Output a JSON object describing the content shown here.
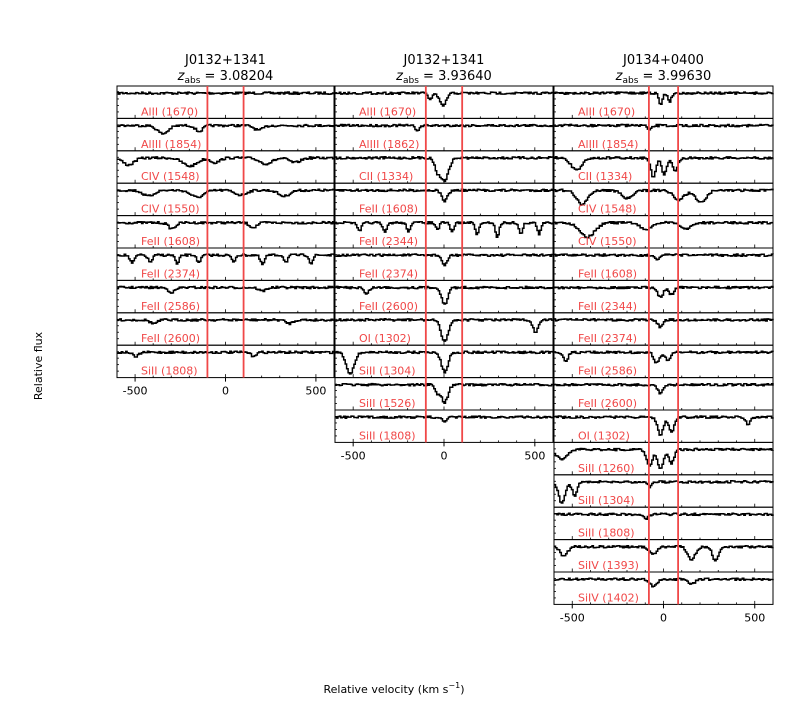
{
  "figure": {
    "ylabel": "Relative flux",
    "xlabel": "Relative velocity (km s",
    "xlabel_sup": "−1",
    "xlabel_tail": ")"
  },
  "colors": {
    "line": "#000000",
    "marker": "#f04848",
    "axis": "#000000"
  },
  "chart_data": [
    {
      "type": "line",
      "title": "J0132+1341",
      "subtitle_prefix": "z",
      "subtitle_sub": "abs",
      "subtitle_value": " = 3.08204",
      "xlim": [
        -600,
        600
      ],
      "xticks": [
        -500,
        0,
        500
      ],
      "xtick_labels": [
        "-500",
        "0",
        "500"
      ],
      "markers": [
        -100,
        100
      ],
      "panels": [
        {
          "ion": "AlII (1670)",
          "features": []
        },
        {
          "ion": "AlIII (1854)",
          "features": [
            {
              "v": -350,
              "d": 0.35,
              "w": 30
            },
            {
              "v": -150,
              "d": 0.25,
              "w": 20
            },
            {
              "v": 180,
              "d": 0.2,
              "w": 25
            }
          ]
        },
        {
          "ion": "CIV (1548)",
          "features": [
            {
              "v": -540,
              "d": 0.3,
              "w": 30
            },
            {
              "v": -200,
              "d": 0.35,
              "w": 40
            },
            {
              "v": -60,
              "d": 0.2,
              "w": 25
            },
            {
              "v": 220,
              "d": 0.25,
              "w": 35
            },
            {
              "v": 380,
              "d": 0.2,
              "w": 30
            }
          ]
        },
        {
          "ion": "CIV (1550)",
          "features": [
            {
              "v": -430,
              "d": 0.25,
              "w": 30
            },
            {
              "v": -160,
              "d": 0.3,
              "w": 35
            },
            {
              "v": 80,
              "d": 0.2,
              "w": 30
            },
            {
              "v": 320,
              "d": 0.25,
              "w": 30
            }
          ]
        },
        {
          "ion": "FeII (1608)",
          "features": [
            {
              "v": -300,
              "d": 0.25,
              "w": 20
            },
            {
              "v": 150,
              "d": 0.2,
              "w": 20
            }
          ]
        },
        {
          "ion": "FeII (2374)",
          "features": [
            {
              "v": -520,
              "d": 0.35,
              "w": 12
            },
            {
              "v": -420,
              "d": 0.3,
              "w": 12
            },
            {
              "v": -270,
              "d": 0.4,
              "w": 10
            },
            {
              "v": -150,
              "d": 0.35,
              "w": 10
            },
            {
              "v": 40,
              "d": 0.3,
              "w": 10
            },
            {
              "v": 200,
              "d": 0.4,
              "w": 12
            },
            {
              "v": 330,
              "d": 0.3,
              "w": 10
            },
            {
              "v": 470,
              "d": 0.35,
              "w": 10
            }
          ]
        },
        {
          "ion": "FeII (2586)",
          "features": [
            {
              "v": -300,
              "d": 0.2,
              "w": 20
            },
            {
              "v": 200,
              "d": 0.15,
              "w": 20
            }
          ]
        },
        {
          "ion": "FeII (2600)",
          "features": [
            {
              "v": -400,
              "d": 0.15,
              "w": 20
            },
            {
              "v": 350,
              "d": 0.15,
              "w": 20
            }
          ]
        },
        {
          "ion": "SiII (1808)",
          "features": [
            {
              "v": -500,
              "d": 0.2,
              "w": 15
            },
            {
              "v": 150,
              "d": 0.15,
              "w": 15
            }
          ]
        }
      ]
    },
    {
      "type": "line",
      "title": "J0132+1341",
      "subtitle_prefix": "z",
      "subtitle_sub": "abs",
      "subtitle_value": " = 3.93640",
      "xlim": [
        -600,
        600
      ],
      "xticks": [
        -500,
        0,
        500
      ],
      "xtick_labels": [
        "-500",
        "0",
        "500"
      ],
      "markers": [
        -100,
        100
      ],
      "panels": [
        {
          "ion": "AlII (1670)",
          "features": [
            {
              "v": -10,
              "d": 0.55,
              "w": 18
            },
            {
              "v": -80,
              "d": 0.25,
              "w": 12
            }
          ]
        },
        {
          "ion": "AlIII (1862)",
          "features": [
            {
              "v": -150,
              "d": 0.2,
              "w": 12
            }
          ]
        },
        {
          "ion": "CII (1334)",
          "features": [
            {
              "v": 0,
              "d": 0.95,
              "w": 22
            },
            {
              "v": -40,
              "d": 0.5,
              "w": 15
            }
          ]
        },
        {
          "ion": "FeII (1608)",
          "features": [
            {
              "v": 0,
              "d": 0.45,
              "w": 16
            }
          ]
        },
        {
          "ion": "FeII (2344)",
          "features": [
            {
              "v": -470,
              "d": 0.35,
              "w": 12
            },
            {
              "v": -330,
              "d": 0.4,
              "w": 12
            },
            {
              "v": -200,
              "d": 0.35,
              "w": 10
            },
            {
              "v": -40,
              "d": 0.3,
              "w": 10
            },
            {
              "v": 40,
              "d": 0.4,
              "w": 10
            },
            {
              "v": 180,
              "d": 0.5,
              "w": 10
            },
            {
              "v": 290,
              "d": 0.6,
              "w": 10
            },
            {
              "v": 420,
              "d": 0.5,
              "w": 10
            },
            {
              "v": 520,
              "d": 0.5,
              "w": 10
            }
          ]
        },
        {
          "ion": "FeII (2374)",
          "features": [
            {
              "v": 0,
              "d": 0.45,
              "w": 14
            }
          ]
        },
        {
          "ion": "FeII (2600)",
          "features": [
            {
              "v": -430,
              "d": 0.3,
              "w": 12
            },
            {
              "v": 0,
              "d": 0.75,
              "w": 16
            }
          ]
        },
        {
          "ion": "OI (1302)",
          "features": [
            {
              "v": 0,
              "d": 0.9,
              "w": 20
            },
            {
              "v": 500,
              "d": 0.5,
              "w": 16
            }
          ]
        },
        {
          "ion": "SiII (1304)",
          "features": [
            {
              "v": -520,
              "d": 0.9,
              "w": 22
            },
            {
              "v": 0,
              "d": 0.85,
              "w": 18
            }
          ]
        },
        {
          "ion": "SiII (1526)",
          "features": [
            {
              "v": 0,
              "d": 0.75,
              "w": 18
            },
            {
              "v": -40,
              "d": 0.35,
              "w": 12
            }
          ]
        },
        {
          "ion": "SiII (1808)",
          "features": [
            {
              "v": 0,
              "d": 0.2,
              "w": 14
            }
          ]
        }
      ]
    },
    {
      "type": "line",
      "title": "J0134+0400",
      "subtitle_prefix": "z",
      "subtitle_sub": "abs",
      "subtitle_value": " = 3.99630",
      "xlim": [
        -600,
        600
      ],
      "xticks": [
        -500,
        0,
        500
      ],
      "xtick_labels": [
        "-500",
        "0",
        "500"
      ],
      "markers": [
        -80,
        80
      ],
      "panels": [
        {
          "ion": "AlII (1670)",
          "features": [
            {
              "v": -20,
              "d": 0.5,
              "w": 10
            },
            {
              "v": 30,
              "d": 0.35,
              "w": 10
            }
          ]
        },
        {
          "ion": "AlIII (1854)",
          "features": [
            {
              "v": -80,
              "d": 0.2,
              "w": 12
            }
          ]
        },
        {
          "ion": "CII (1334)",
          "features": [
            {
              "v": -480,
              "d": 0.5,
              "w": 30
            },
            {
              "v": -60,
              "d": 0.8,
              "w": 14
            },
            {
              "v": 0,
              "d": 0.7,
              "w": 14
            },
            {
              "v": 60,
              "d": 0.6,
              "w": 14
            }
          ]
        },
        {
          "ion": "CIV (1548)",
          "features": [
            {
              "v": -450,
              "d": 0.6,
              "w": 30
            },
            {
              "v": -200,
              "d": 0.35,
              "w": 30
            },
            {
              "v": 80,
              "d": 0.4,
              "w": 30
            },
            {
              "v": 200,
              "d": 0.5,
              "w": 30
            }
          ]
        },
        {
          "ion": "CIV (1550)",
          "features": [
            {
              "v": -420,
              "d": 0.6,
              "w": 40
            },
            {
              "v": -100,
              "d": 0.3,
              "w": 30
            },
            {
              "v": 120,
              "d": 0.25,
              "w": 30
            }
          ]
        },
        {
          "ion": "FeII (1608)",
          "features": [
            {
              "v": -40,
              "d": 0.2,
              "w": 12
            }
          ]
        },
        {
          "ion": "FeII (2344)",
          "features": [
            {
              "v": -20,
              "d": 0.4,
              "w": 16
            },
            {
              "v": 40,
              "d": 0.3,
              "w": 14
            }
          ]
        },
        {
          "ion": "FeII (2374)",
          "features": [
            {
              "v": -20,
              "d": 0.3,
              "w": 14
            }
          ]
        },
        {
          "ion": "FeII (2586)",
          "features": [
            {
              "v": -540,
              "d": 0.4,
              "w": 12
            },
            {
              "v": -40,
              "d": 0.45,
              "w": 16
            },
            {
              "v": 20,
              "d": 0.35,
              "w": 14
            }
          ]
        },
        {
          "ion": "FeII (2600)",
          "features": [
            {
              "v": -20,
              "d": 0.35,
              "w": 16
            }
          ]
        },
        {
          "ion": "OI (1302)",
          "features": [
            {
              "v": -20,
              "d": 0.75,
              "w": 16
            },
            {
              "v": 40,
              "d": 0.65,
              "w": 14
            },
            {
              "v": 460,
              "d": 0.35,
              "w": 12
            }
          ]
        },
        {
          "ion": "SiII (1260)",
          "features": [
            {
              "v": -560,
              "d": 0.4,
              "w": 30
            },
            {
              "v": -80,
              "d": 0.7,
              "w": 16
            },
            {
              "v": -20,
              "d": 0.8,
              "w": 16
            },
            {
              "v": 40,
              "d": 0.6,
              "w": 14
            }
          ]
        },
        {
          "ion": "SiII (1304)",
          "features": [
            {
              "v": -560,
              "d": 0.9,
              "w": 18
            },
            {
              "v": -490,
              "d": 0.6,
              "w": 14
            },
            {
              "v": -80,
              "d": 0.2,
              "w": 10
            }
          ]
        },
        {
          "ion": "SiII (1808)",
          "features": [
            {
              "v": -100,
              "d": 0.2,
              "w": 12
            }
          ]
        },
        {
          "ion": "SiIV (1393)",
          "features": [
            {
              "v": -550,
              "d": 0.4,
              "w": 20
            },
            {
              "v": -60,
              "d": 0.3,
              "w": 20
            },
            {
              "v": 150,
              "d": 0.55,
              "w": 20
            },
            {
              "v": 280,
              "d": 0.6,
              "w": 16
            }
          ]
        },
        {
          "ion": "SiIV (1402)",
          "features": [
            {
              "v": -60,
              "d": 0.3,
              "w": 20
            },
            {
              "v": 150,
              "d": 0.2,
              "w": 20
            }
          ]
        }
      ]
    }
  ]
}
